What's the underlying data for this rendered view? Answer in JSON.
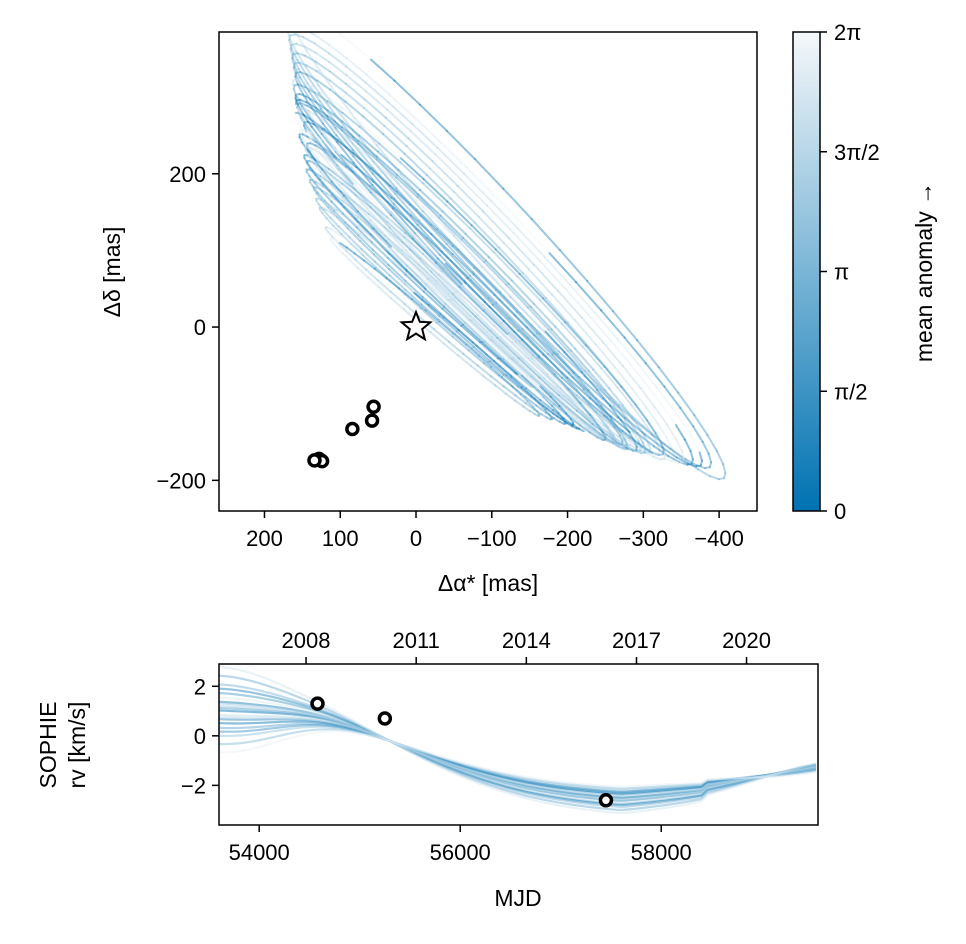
{
  "chart_data": [
    {
      "type": "line",
      "panel": "astrometry",
      "title": "",
      "xlabel": "Δα* [mas]",
      "ylabel": "Δδ [mas]",
      "xlim": [
        260,
        -450
      ],
      "ylim": [
        -240,
        385
      ],
      "x_axis_reversed": true,
      "x_ticks": [
        200,
        100,
        0,
        -100,
        -200,
        -300,
        -400
      ],
      "x_tick_labels": [
        "200",
        "100",
        "0",
        "−100",
        "−200",
        "−300",
        "−400"
      ],
      "y_ticks": [
        -200,
        0,
        200
      ],
      "y_tick_labels": [
        "−200",
        "0",
        "200"
      ],
      "grid": false,
      "description_of_series": "Many semi-transparent posterior orbit ellipses, colored by mean anomaly (dark blue = 0, white = 2π)",
      "orbit_samples": [
        {
          "cx": -60,
          "cy": 60,
          "a": 310,
          "b": 24,
          "angle_deg": 45,
          "mean_anomaly_start": 0.1
        },
        {
          "cx": -55,
          "cy": 50,
          "a": 290,
          "b": 20,
          "angle_deg": 44,
          "mean_anomaly_start": 0.55
        },
        {
          "cx": -70,
          "cy": 65,
          "a": 320,
          "b": 28,
          "angle_deg": 45,
          "mean_anomaly_start": 1.0
        },
        {
          "cx": -50,
          "cy": 40,
          "a": 270,
          "b": 18,
          "angle_deg": 43,
          "mean_anomaly_start": 1.45
        },
        {
          "cx": -80,
          "cy": 75,
          "a": 340,
          "b": 32,
          "angle_deg": 45,
          "mean_anomaly_start": 1.9
        },
        {
          "cx": -45,
          "cy": 35,
          "a": 255,
          "b": 15,
          "angle_deg": 42,
          "mean_anomaly_start": 2.35
        },
        {
          "cx": -90,
          "cy": 85,
          "a": 360,
          "b": 36,
          "angle_deg": 46,
          "mean_anomaly_start": 2.8
        },
        {
          "cx": -40,
          "cy": 25,
          "a": 235,
          "b": 14,
          "angle_deg": 42,
          "mean_anomaly_start": 3.25
        },
        {
          "cx": -100,
          "cy": 95,
          "a": 380,
          "b": 40,
          "angle_deg": 46,
          "mean_anomaly_start": 3.7
        },
        {
          "cx": -35,
          "cy": 15,
          "a": 215,
          "b": 12,
          "angle_deg": 41,
          "mean_anomaly_start": 4.15
        },
        {
          "cx": -110,
          "cy": 105,
          "a": 400,
          "b": 42,
          "angle_deg": 46,
          "mean_anomaly_start": 4.6
        },
        {
          "cx": -30,
          "cy": 5,
          "a": 195,
          "b": 10,
          "angle_deg": 40,
          "mean_anomaly_start": 5.05
        },
        {
          "cx": -120,
          "cy": 110,
          "a": 420,
          "b": 45,
          "angle_deg": 47,
          "mean_anomaly_start": 5.5
        },
        {
          "cx": -25,
          "cy": 0,
          "a": 180,
          "b": 9,
          "angle_deg": 40,
          "mean_anomaly_start": 5.95
        },
        {
          "cx": -65,
          "cy": 55,
          "a": 300,
          "b": 26,
          "angle_deg": 45,
          "mean_anomaly_start": 0.3
        },
        {
          "cx": -75,
          "cy": 70,
          "a": 330,
          "b": 30,
          "angle_deg": 45,
          "mean_anomaly_start": 0.8
        },
        {
          "cx": -58,
          "cy": 45,
          "a": 280,
          "b": 22,
          "angle_deg": 44,
          "mean_anomaly_start": 1.25
        },
        {
          "cx": -85,
          "cy": 80,
          "a": 350,
          "b": 34,
          "angle_deg": 46,
          "mean_anomaly_start": 1.7
        },
        {
          "cx": -48,
          "cy": 38,
          "a": 262,
          "b": 16,
          "angle_deg": 43,
          "mean_anomaly_start": 2.15
        },
        {
          "cx": -95,
          "cy": 90,
          "a": 370,
          "b": 38,
          "angle_deg": 46,
          "mean_anomaly_start": 2.6
        },
        {
          "cx": -42,
          "cy": 28,
          "a": 245,
          "b": 14,
          "angle_deg": 42,
          "mean_anomaly_start": 3.05
        },
        {
          "cx": -105,
          "cy": 100,
          "a": 390,
          "b": 41,
          "angle_deg": 46,
          "mean_anomaly_start": 3.5
        },
        {
          "cx": -38,
          "cy": 20,
          "a": 225,
          "b": 13,
          "angle_deg": 41,
          "mean_anomaly_start": 3.95
        },
        {
          "cx": -68,
          "cy": 62,
          "a": 315,
          "b": 27,
          "angle_deg": 45,
          "mean_anomaly_start": 4.4
        },
        {
          "cx": -52,
          "cy": 44,
          "a": 275,
          "b": 19,
          "angle_deg": 44,
          "mean_anomaly_start": 4.85
        },
        {
          "cx": -82,
          "cy": 78,
          "a": 345,
          "b": 33,
          "angle_deg": 45,
          "mean_anomaly_start": 5.3
        },
        {
          "cx": -60,
          "cy": 52,
          "a": 295,
          "b": 23,
          "angle_deg": 44,
          "mean_anomaly_start": 5.75
        },
        {
          "cx": -72,
          "cy": 66,
          "a": 325,
          "b": 29,
          "angle_deg": 45,
          "mean_anomaly_start": 0.2
        }
      ],
      "observations": [
        {
          "x": 128,
          "y": -172
        },
        {
          "x": 124,
          "y": -175
        },
        {
          "x": 134,
          "y": -174
        },
        {
          "x": 84,
          "y": -133
        },
        {
          "x": 58,
          "y": -122
        },
        {
          "x": 56,
          "y": -104
        }
      ],
      "star_marker": {
        "x": 0,
        "y": 0
      }
    },
    {
      "type": "line",
      "panel": "radial-velocity",
      "title": "",
      "xlabel": "MJD",
      "ylabel_lines": [
        "SOPHIE",
        "rv [km/s]"
      ],
      "xlim": [
        53600,
        59560
      ],
      "ylim": [
        -3.6,
        2.9
      ],
      "x_ticks": [
        54000,
        56000,
        58000
      ],
      "x_tick_labels": [
        "54000",
        "56000",
        "58000"
      ],
      "y_ticks": [
        -2,
        0,
        2
      ],
      "y_tick_labels": [
        "−2",
        "0",
        "2"
      ],
      "top_axis_label": "",
      "top_axis_ticks_mjd": [
        54466,
        55562,
        56658,
        57754,
        58849
      ],
      "top_axis_tick_labels": [
        "2008",
        "2011",
        "2014",
        "2017",
        "2020"
      ],
      "grid": false,
      "rv_model_samples": [
        {
          "offset": 0.0,
          "amp": 1.0,
          "mean_anomaly": 0.3
        },
        {
          "offset": 0.15,
          "amp": 1.05,
          "mean_anomaly": 0.9
        },
        {
          "offset": -0.15,
          "amp": 0.95,
          "mean_anomaly": 1.5
        },
        {
          "offset": 0.3,
          "amp": 1.1,
          "mean_anomaly": 2.1
        },
        {
          "offset": -0.3,
          "amp": 0.9,
          "mean_anomaly": 2.7
        },
        {
          "offset": 0.45,
          "amp": 1.15,
          "mean_anomaly": 3.3
        },
        {
          "offset": -0.45,
          "amp": 0.88,
          "mean_anomaly": 3.9
        },
        {
          "offset": 0.08,
          "amp": 1.02,
          "mean_anomaly": 4.5
        },
        {
          "offset": -0.08,
          "amp": 0.98,
          "mean_anomaly": 5.1
        },
        {
          "offset": 0.22,
          "amp": 1.08,
          "mean_anomaly": 5.7
        },
        {
          "offset": -0.22,
          "amp": 0.93,
          "mean_anomaly": 0.6
        },
        {
          "offset": 0.38,
          "amp": 1.12,
          "mean_anomaly": 1.2
        },
        {
          "offset": -0.38,
          "amp": 0.91,
          "mean_anomaly": 1.8
        },
        {
          "offset": 0.05,
          "amp": 1.0,
          "mean_anomaly": 2.4
        },
        {
          "offset": 0.6,
          "amp": 1.2,
          "mean_anomaly": 3.0
        },
        {
          "offset": -0.6,
          "amp": 0.85,
          "mean_anomaly": 3.6
        },
        {
          "offset": 0.12,
          "amp": 1.04,
          "mean_anomaly": 4.2
        },
        {
          "offset": -0.12,
          "amp": 0.97,
          "mean_anomaly": 4.8
        },
        {
          "offset": 0.75,
          "amp": 1.25,
          "mean_anomaly": 5.4
        },
        {
          "offset": -0.75,
          "amp": 0.82,
          "mean_anomaly": 6.0
        }
      ],
      "observations": [
        {
          "x": 54580,
          "y": 1.3
        },
        {
          "x": 55250,
          "y": 0.7
        },
        {
          "x": 57450,
          "y": -2.6
        }
      ]
    }
  ],
  "colorbar": {
    "label": "mean anomaly →",
    "range": [
      0,
      6.2832
    ],
    "tick_values": [
      0,
      1.5708,
      3.1416,
      4.7124,
      6.2832
    ],
    "tick_labels": [
      "0",
      "π/2",
      "π",
      "3π/2",
      "2π"
    ],
    "color_low": "#0072b2",
    "color_high": "#f5f8fa"
  },
  "colors": {
    "orbit": "#0072b2",
    "marker_edge": "#000000",
    "marker_fill": "#ffffff"
  }
}
